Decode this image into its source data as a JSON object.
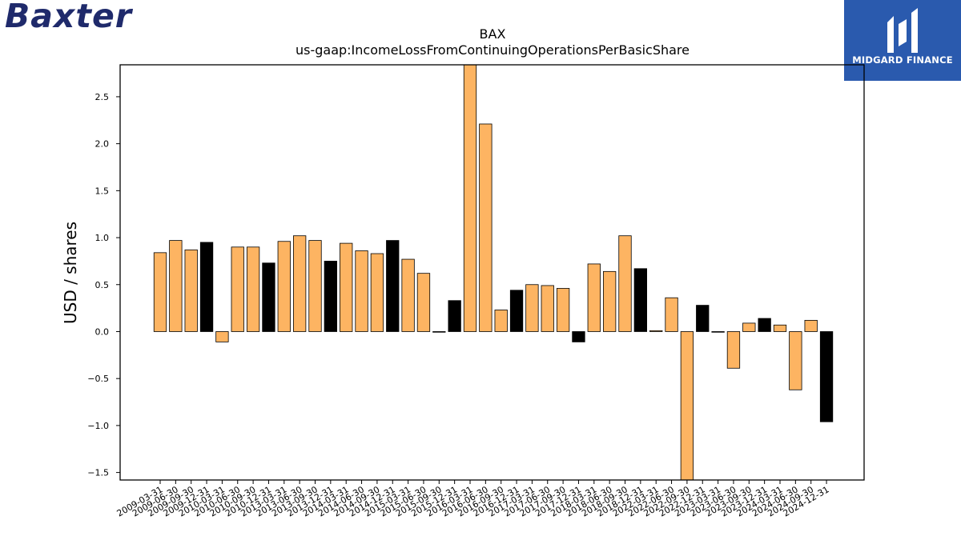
{
  "brand": {
    "logo_text": "Baxter"
  },
  "partner": {
    "name": "MIDGARD FINANCE",
    "icon": "midgard-logo-icon"
  },
  "colors": {
    "positive_bar": "#fdb462",
    "highlight_bar": "#000000",
    "edge": "#000000",
    "badge_bg": "#2a5aae",
    "logo": "#1f2a6b"
  },
  "chart_data": {
    "type": "bar",
    "title": "BAX",
    "subtitle": "us-gaap:IncomeLossFromContinuingOperationsPerBasicShare",
    "xlabel": "",
    "ylabel": "USD / shares",
    "ylim": [
      -1.58,
      2.84
    ],
    "yticks": [
      -1.5,
      -1.0,
      -0.5,
      0.0,
      0.5,
      1.0,
      1.5,
      2.0,
      2.5
    ],
    "ytick_labels": [
      "−1.5",
      "−1.0",
      "−0.5",
      "0.0",
      "0.5",
      "1.0",
      "1.5",
      "2.0",
      "2.5"
    ],
    "categories": [
      "2009-03-31",
      "2009-06-30",
      "2009-09-30",
      "2009-12-31",
      "2010-03-31",
      "2010-06-30",
      "2010-09-30",
      "2010-12-31",
      "2013-03-31",
      "2013-06-30",
      "2013-09-30",
      "2013-12-31",
      "2014-03-31",
      "2014-06-30",
      "2014-09-30",
      "2014-12-31",
      "2015-03-31",
      "2015-06-30",
      "2015-09-30",
      "2015-12-31",
      "2016-03-31",
      "2016-06-30",
      "2016-09-30",
      "2016-12-31",
      "2017-03-31",
      "2017-06-30",
      "2017-09-30",
      "2017-12-31",
      "2018-03-31",
      "2018-06-30",
      "2018-09-30",
      "2018-12-31",
      "2022-03-31",
      "2022-06-30",
      "2022-09-30",
      "2022-12-31",
      "2023-03-31",
      "2023-06-30",
      "2023-09-30",
      "2023-12-31",
      "2024-03-31",
      "2024-06-30",
      "2024-09-30",
      "2024-12-31"
    ],
    "values": [
      0.84,
      0.97,
      0.87,
      0.95,
      -0.11,
      0.9,
      0.9,
      0.73,
      0.96,
      1.02,
      0.97,
      0.75,
      0.94,
      0.86,
      0.83,
      0.97,
      0.77,
      0.62,
      0.0,
      0.33,
      2.84,
      2.21,
      0.23,
      0.44,
      0.5,
      0.49,
      0.46,
      -0.11,
      0.72,
      0.64,
      1.02,
      0.67,
      0.01,
      0.36,
      -1.58,
      0.28,
      0.0,
      -0.39,
      0.09,
      0.14,
      0.07,
      -0.62,
      0.12,
      -0.96
    ],
    "highlight": [
      false,
      false,
      false,
      true,
      false,
      false,
      false,
      true,
      false,
      false,
      false,
      true,
      false,
      false,
      false,
      true,
      false,
      false,
      false,
      true,
      false,
      false,
      false,
      true,
      false,
      false,
      false,
      true,
      false,
      false,
      false,
      true,
      false,
      false,
      false,
      true,
      false,
      false,
      false,
      true,
      false,
      false,
      false,
      true
    ],
    "grid": false,
    "legend": "none"
  }
}
